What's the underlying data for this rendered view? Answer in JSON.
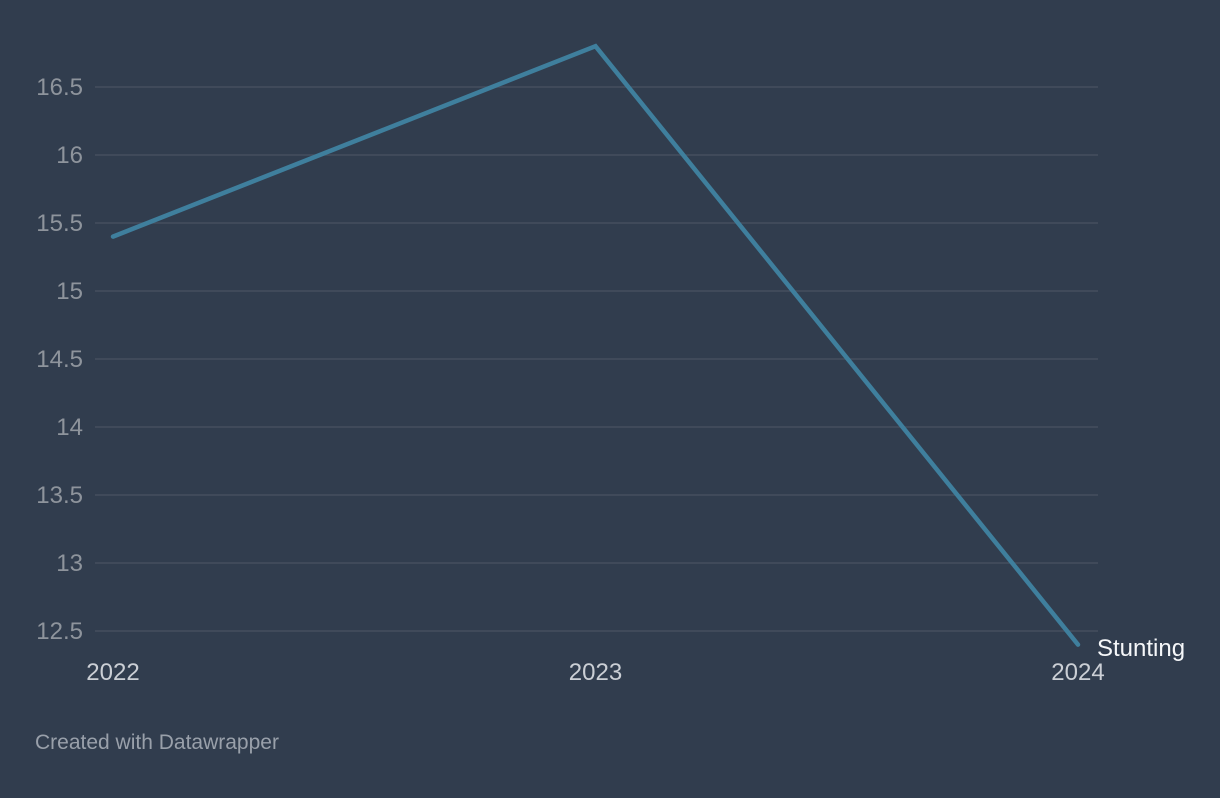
{
  "chart_data": {
    "type": "line",
    "x": [
      "2022",
      "2023",
      "2024"
    ],
    "series": [
      {
        "name": "Stunting",
        "values": [
          15.4,
          16.8,
          12.4
        ]
      }
    ],
    "title": "",
    "xlabel": "",
    "ylabel": "",
    "y_ticks": [
      16.5,
      16,
      15.5,
      15,
      14.5,
      14,
      13.5,
      13,
      12.5
    ],
    "ylim": [
      12.35,
      16.9
    ],
    "grid": "horizontal",
    "legend_position": "end-of-line-label",
    "series_label": "Stunting"
  },
  "colors": {
    "background": "#313d4e",
    "gridline": "#454f5e",
    "line": "#3f7f9d",
    "y_tick_text": "#8e949c",
    "x_tick_text": "#cbcfd5",
    "series_label_text": "#f5f7f9",
    "attribution_text": "#99a0aa"
  },
  "attribution": "Created with Datawrapper"
}
